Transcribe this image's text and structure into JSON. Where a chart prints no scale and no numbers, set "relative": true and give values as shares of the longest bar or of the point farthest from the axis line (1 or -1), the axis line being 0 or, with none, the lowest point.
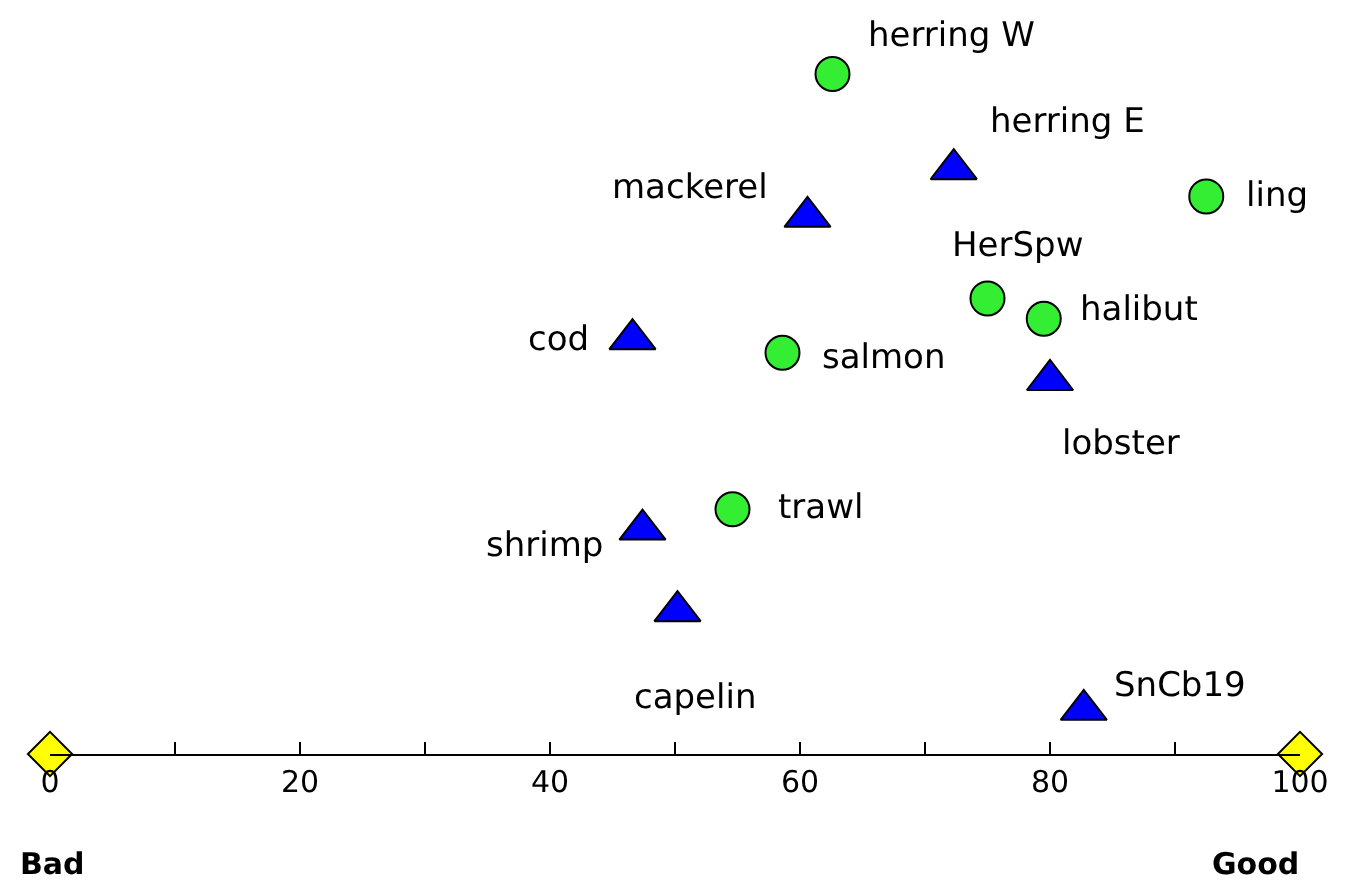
{
  "chart_data": {
    "type": "scatter",
    "relative": true,
    "grid": false,
    "xlim": [
      0,
      100
    ],
    "xticks": [
      0,
      {
        "value": 10,
        "label": null
      },
      20,
      {
        "value": 30,
        "label": null
      },
      40,
      {
        "value": 50,
        "label": null
      },
      60,
      {
        "value": 70,
        "label": null
      },
      80,
      {
        "value": 90,
        "label": null
      },
      100
    ],
    "series": [
      {
        "color": "#33ee33",
        "marker": "circle",
        "x": [
          62.6,
          92.5,
          75.0,
          79.5,
          58.6,
          54.6
        ],
        "values": [
          1.0,
          0.82,
          0.67,
          0.64,
          0.59,
          0.36
        ]
      },
      {
        "color": "#0000ff",
        "marker": "triangle",
        "x": [
          72.3,
          60.6,
          46.6,
          80.0,
          47.4,
          50.2,
          82.7
        ],
        "values": [
          0.86,
          0.79,
          0.61,
          0.55,
          0.33,
          0.21,
          0.065
        ]
      },
      {
        "color": "#ffff00",
        "marker": "diamond",
        "x": [
          0,
          100
        ],
        "values": [
          0,
          0
        ]
      }
    ],
    "annotations": [
      {
        "text": "herring W",
        "x": 62.6,
        "y": 1.0
      },
      {
        "text": "herring E",
        "x": 72.3,
        "y": 0.86
      },
      {
        "text": "ling",
        "x": 92.5,
        "y": 0.82
      },
      {
        "text": "mackerel",
        "x": 60.6,
        "y": 0.79
      },
      {
        "text": "HerSpw",
        "x": 75.0,
        "y": 0.67
      },
      {
        "text": "halibut",
        "x": 79.5,
        "y": 0.64
      },
      {
        "text": "cod",
        "x": 46.6,
        "y": 0.61
      },
      {
        "text": "salmon",
        "x": 58.6,
        "y": 0.59
      },
      {
        "text": "lobster",
        "x": 80.0,
        "y": 0.55
      },
      {
        "text": "trawl",
        "x": 54.6,
        "y": 0.36
      },
      {
        "text": "shrimp",
        "x": 47.4,
        "y": 0.33
      },
      {
        "text": "capelin",
        "x": 50.2,
        "y": 0.21
      },
      {
        "text": "SnCb19",
        "x": 82.7,
        "y": 0.065
      },
      "Bad",
      "Good"
    ]
  }
}
